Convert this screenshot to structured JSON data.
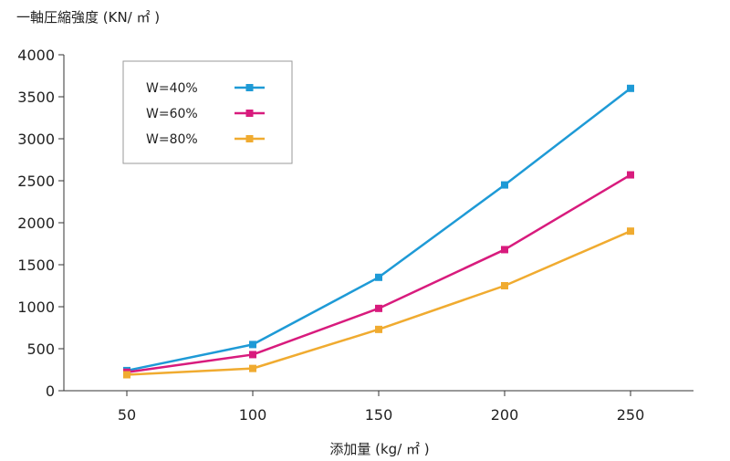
{
  "chart_data": {
    "type": "line",
    "title": "",
    "ylabel": "一軸圧縮強度 (KN/ ㎡ )",
    "xlabel": "添加量 (kg/ ㎡ )",
    "categories": [
      "50",
      "100",
      "150",
      "200",
      "250"
    ],
    "x": [
      50,
      100,
      150,
      200,
      250
    ],
    "xlim": [
      25,
      275
    ],
    "ylim": [
      0,
      4000
    ],
    "yticks": [
      0,
      500,
      1000,
      1500,
      2000,
      2500,
      3000,
      3500,
      4000
    ],
    "ytick_labels": [
      "0",
      "500",
      "1000",
      "1500",
      "2000",
      "2500",
      "3000",
      "3500",
      "4000"
    ],
    "grid": false,
    "legend_position": "top-left",
    "series": [
      {
        "name": "W=40%",
        "color": "#1e9ad6",
        "values": [
          240,
          550,
          1350,
          2450,
          3600
        ]
      },
      {
        "name": "W=60%",
        "color": "#d81b7d",
        "values": [
          220,
          430,
          980,
          1680,
          2570
        ]
      },
      {
        "name": "W=80%",
        "color": "#f0ab30",
        "values": [
          190,
          265,
          730,
          1250,
          1900
        ]
      }
    ]
  }
}
